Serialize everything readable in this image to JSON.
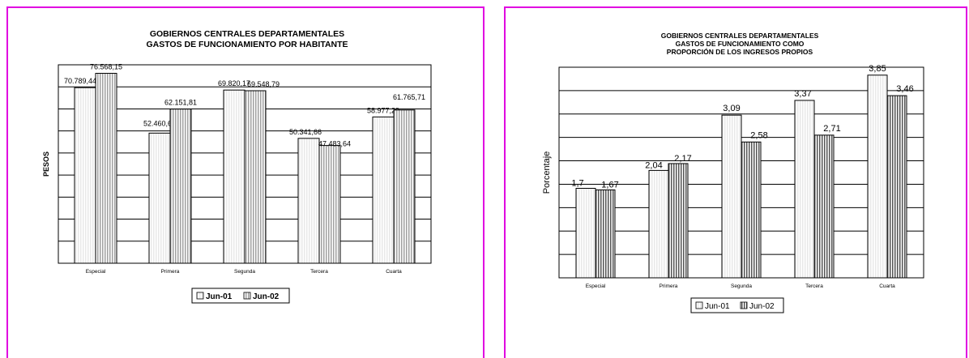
{
  "chart_data": [
    {
      "type": "bar",
      "title_lines": [
        "GOBIERNOS CENTRALES DEPARTAMENTALES",
        "GASTOS DE FUNCIONAMIENTO POR HABITANTE"
      ],
      "ylabel": "PESOS",
      "categories": [
        "Especial",
        "Primera",
        "Segunda",
        "Tercera",
        "Cuarta"
      ],
      "series": [
        {
          "name": "Jun-01",
          "values": [
            70789.44,
            52460.63,
            69820.17,
            50341.66,
            58977.29
          ],
          "labels": [
            "70.789,44",
            "52.460,63",
            "69.820,17",
            "50.341,66",
            "58.977,29"
          ]
        },
        {
          "name": "Jun-02",
          "values": [
            76568.15,
            62151.81,
            69548.79,
            47483.64,
            61765.71
          ],
          "labels": [
            "76.568,15",
            "62.151,81",
            "69.548,79",
            "47.483,64",
            "61.765,71"
          ]
        }
      ],
      "ylim": [
        0,
        80000
      ],
      "grid": true,
      "legend": "bottom",
      "colors": {
        "Jun-01": "#e8e8e8",
        "Jun-02": "#a0a0a0"
      }
    },
    {
      "type": "bar",
      "title_lines": [
        "GOBIERNOS CENTRALES DEPARTAMENTALES",
        "GASTOS DE FUNCIONAMIENTO COMO",
        "PROPORCIÓN DE LOS INGRESOS PROPIOS"
      ],
      "ylabel": "Porcentaje",
      "categories": [
        "Especial",
        "Primera",
        "Segunda",
        "Tercera",
        "Cuarta"
      ],
      "series": [
        {
          "name": "Jun-01",
          "values": [
            1.7,
            2.04,
            3.09,
            3.37,
            3.85
          ],
          "labels": [
            "1,7",
            "2,04",
            "3,09",
            "3,37",
            "3,85"
          ]
        },
        {
          "name": "Jun-02",
          "values": [
            1.67,
            2.17,
            2.58,
            2.71,
            3.46
          ],
          "labels": [
            "1,67",
            "2,17",
            "2,58",
            "2,71",
            "3,46"
          ]
        }
      ],
      "ylim": [
        0,
        4
      ],
      "grid": true,
      "legend": "bottom",
      "colors": {
        "Jun-01": "#e8e8e8",
        "Jun-02": "#555555"
      }
    }
  ]
}
